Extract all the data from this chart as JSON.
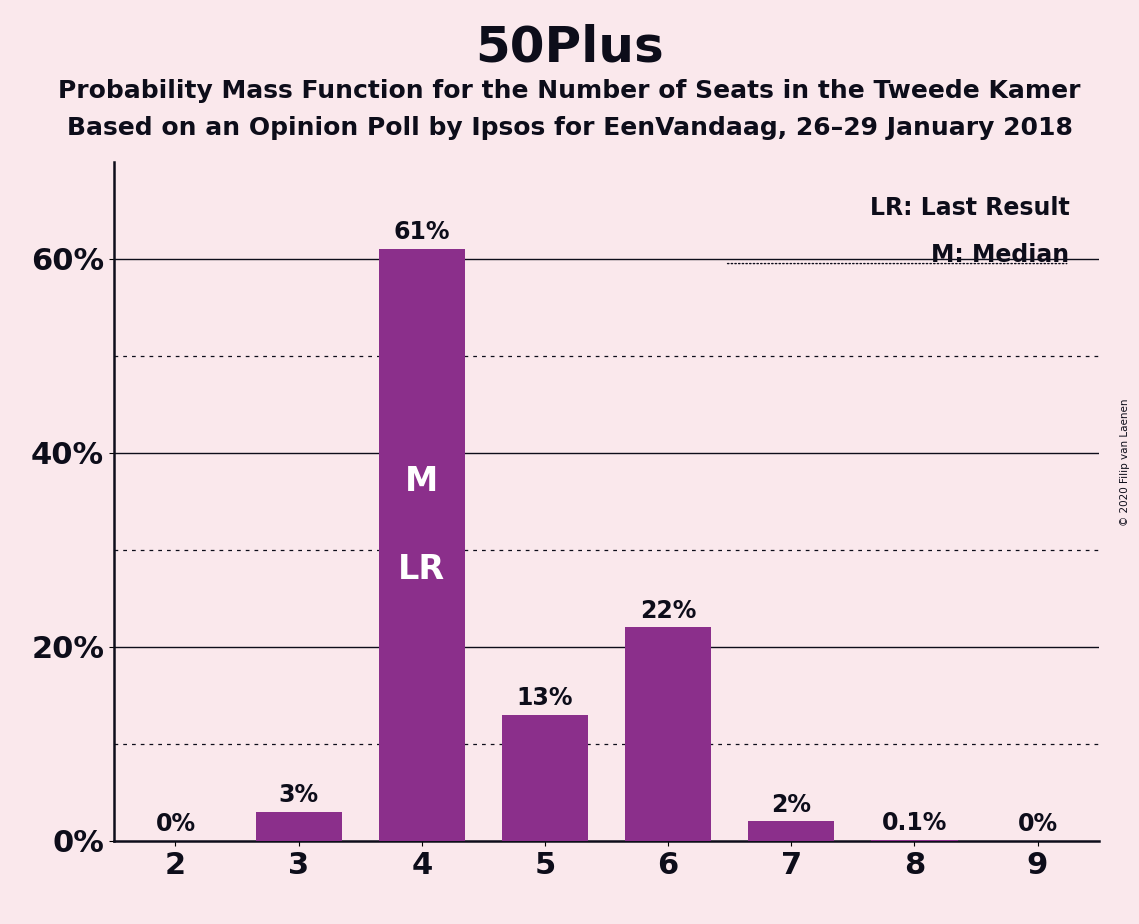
{
  "title": "50Plus",
  "subtitle1": "Probability Mass Function for the Number of Seats in the Tweede Kamer",
  "subtitle2": "Based on an Opinion Poll by Ipsos for EenVandaag, 26–29 January 2018",
  "copyright": "© 2020 Filip van Laenen",
  "categories": [
    2,
    3,
    4,
    5,
    6,
    7,
    8,
    9
  ],
  "values": [
    0.0,
    3.0,
    61.0,
    13.0,
    22.0,
    2.0,
    0.1,
    0.0
  ],
  "labels": [
    "0%",
    "3%",
    "61%",
    "13%",
    "22%",
    "2%",
    "0.1%",
    "0%"
  ],
  "bar_color": "#8B2F8B",
  "background_color": "#FAE8EC",
  "text_color": "#0d0d1a",
  "median_seat": 4,
  "last_result_seat": 4,
  "median_label": "M",
  "last_result_label": "LR",
  "legend_lr": "LR: Last Result",
  "legend_m": "M: Median",
  "title_fontsize": 36,
  "subtitle_fontsize": 18,
  "label_fontsize": 17,
  "tick_fontsize": 22,
  "inner_label_fontsize": 24,
  "ylabel_max": 70,
  "ytick_positions": [
    0,
    20,
    40,
    60
  ],
  "ytick_labels": [
    "0%",
    "20%",
    "40%",
    "60%"
  ],
  "dotted_yticks": [
    10,
    30,
    50
  ],
  "solid_yticks": [
    20,
    40,
    60
  ]
}
